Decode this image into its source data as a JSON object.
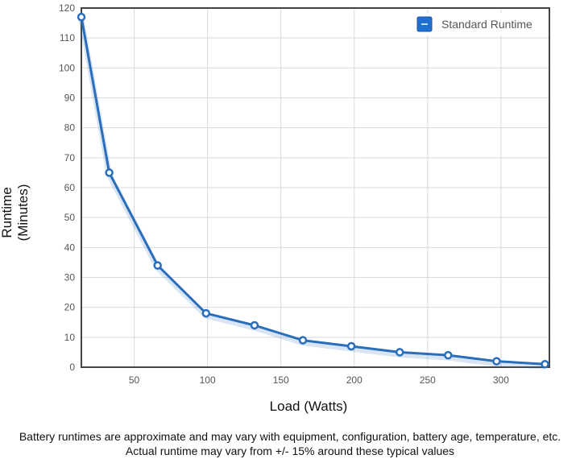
{
  "chart_data": {
    "type": "line",
    "xlabel": "Load (Watts)",
    "ylabel": [
      "Runtime",
      "(Minutes)"
    ],
    "xlim": [
      14,
      333
    ],
    "ylim": [
      0,
      120
    ],
    "x_ticks": [
      50,
      100,
      150,
      200,
      250,
      300
    ],
    "y_ticks": [
      0,
      10,
      20,
      30,
      40,
      50,
      60,
      70,
      80,
      90,
      100,
      110,
      120
    ],
    "grid": true,
    "legend_position": "top-right",
    "series": [
      {
        "name": "Standard Runtime",
        "color": "#2a6ebb",
        "x": [
          14,
          33,
          66,
          99,
          132,
          165,
          198,
          231,
          264,
          297,
          330
        ],
        "y": [
          117,
          65,
          34,
          18,
          14,
          9,
          7,
          5,
          4,
          2,
          1
        ]
      }
    ]
  },
  "footnotes": {
    "line1": "Battery runtimes are approximate and may vary with equipment, configuration, battery age, temperature, etc.",
    "line2": "Actual runtime may vary from +/- 15% around these typical values"
  }
}
